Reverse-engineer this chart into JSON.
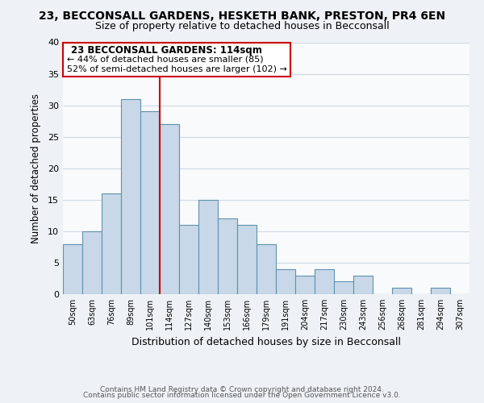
{
  "title": "23, BECCONSALL GARDENS, HESKETH BANK, PRESTON, PR4 6EN",
  "subtitle": "Size of property relative to detached houses in Becconsall",
  "xlabel": "Distribution of detached houses by size in Becconsall",
  "ylabel": "Number of detached properties",
  "bin_labels": [
    "50sqm",
    "63sqm",
    "76sqm",
    "89sqm",
    "101sqm",
    "114sqm",
    "127sqm",
    "140sqm",
    "153sqm",
    "166sqm",
    "179sqm",
    "191sqm",
    "204sqm",
    "217sqm",
    "230sqm",
    "243sqm",
    "256sqm",
    "268sqm",
    "281sqm",
    "294sqm",
    "307sqm"
  ],
  "bar_values": [
    8,
    10,
    16,
    31,
    29,
    27,
    11,
    15,
    12,
    11,
    8,
    4,
    3,
    4,
    2,
    3,
    0,
    1,
    0,
    1,
    0
  ],
  "bar_color": "#c8d8e8",
  "bar_edge_color": "#6090b0",
  "highlight_line_color": "#cc0000",
  "highlight_bar_index": 5,
  "ylim": [
    0,
    40
  ],
  "yticks": [
    0,
    5,
    10,
    15,
    20,
    25,
    30,
    35,
    40
  ],
  "annotation_title": "23 BECCONSALL GARDENS: 114sqm",
  "annotation_line1": "← 44% of detached houses are smaller (85)",
  "annotation_line2": "52% of semi-detached houses are larger (102) →",
  "annotation_box_edge_color": "#cc0000",
  "footer_line1": "Contains HM Land Registry data © Crown copyright and database right 2024.",
  "footer_line2": "Contains public sector information licensed under the Open Government Licence v3.0.",
  "background_color": "#eef2f6",
  "plot_background_color": "#f8fafc",
  "grid_color": "#d0d8e4"
}
